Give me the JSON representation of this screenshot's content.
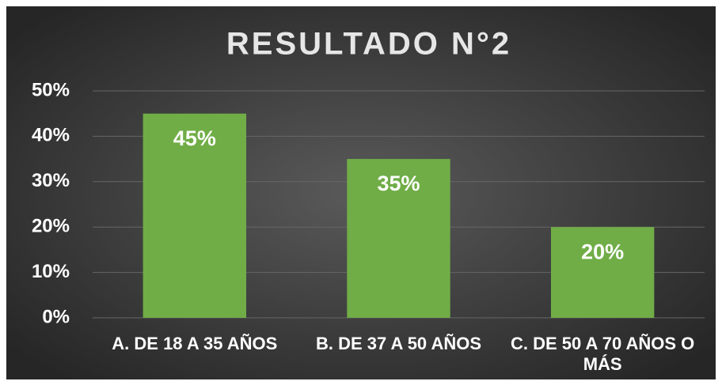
{
  "chart_data": {
    "type": "bar",
    "title": "RESULTADO N°2",
    "categories": [
      "A. DE 18 A 35 AÑOS",
      "B. DE 37 A 50 AÑOS",
      "C. DE 50 A 70 AÑOS O MÁS"
    ],
    "values": [
      45,
      35,
      20
    ],
    "value_labels": [
      "45%",
      "35%",
      "20%"
    ],
    "color": "#70ad47",
    "ylim": [
      0,
      50
    ],
    "yticks": [
      {
        "value": 0,
        "label": "0%"
      },
      {
        "value": 10,
        "label": "10%"
      },
      {
        "value": 20,
        "label": "20%"
      },
      {
        "value": 30,
        "label": "30%"
      },
      {
        "value": 40,
        "label": "40%"
      },
      {
        "value": 50,
        "label": "50%"
      }
    ],
    "grid": true
  }
}
